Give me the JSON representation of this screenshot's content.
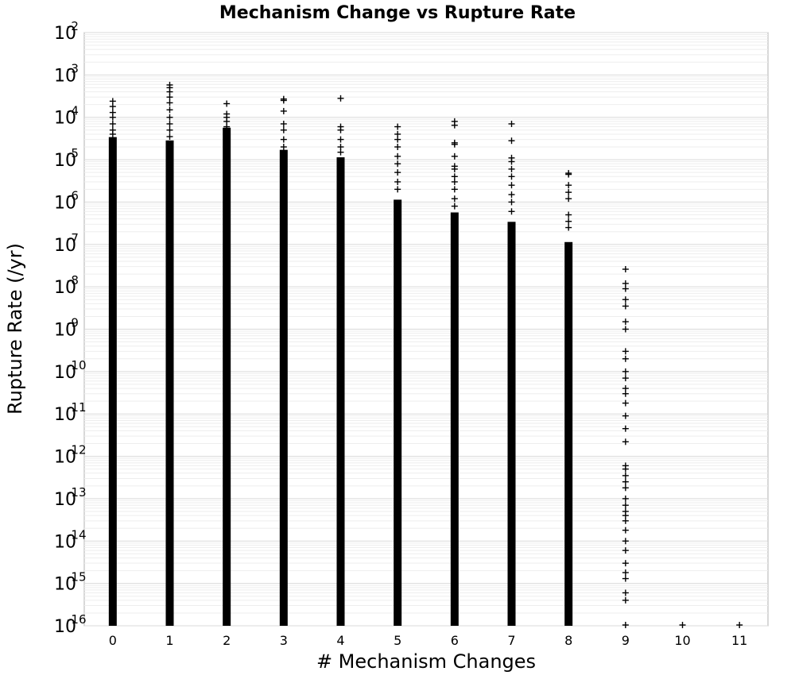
{
  "chart_data": {
    "type": "scatter",
    "title": "Mechanism Change vs Rupture Rate",
    "xlabel": "# Mechanism Changes",
    "ylabel": "Rupture Rate (/yr)",
    "x_ticks": [
      "0",
      "1",
      "2",
      "3",
      "4",
      "5",
      "6",
      "7",
      "8",
      "9",
      "10",
      "11"
    ],
    "xlim": [
      -0.5,
      11.5
    ],
    "y_scale": "log",
    "ylim": [
      1e-16,
      0.01
    ],
    "y_ticks": [
      {
        "base": "10",
        "exp": "-2"
      },
      {
        "base": "10",
        "exp": "-3"
      },
      {
        "base": "10",
        "exp": "-4"
      },
      {
        "base": "10",
        "exp": "-5"
      },
      {
        "base": "10",
        "exp": "-6"
      },
      {
        "base": "10",
        "exp": "-7"
      },
      {
        "base": "10",
        "exp": "-8"
      },
      {
        "base": "10",
        "exp": "-9"
      },
      {
        "base": "10",
        "exp": "-10"
      },
      {
        "base": "10",
        "exp": "-11"
      },
      {
        "base": "10",
        "exp": "-12"
      },
      {
        "base": "10",
        "exp": "-13"
      },
      {
        "base": "10",
        "exp": "-14"
      },
      {
        "base": "10",
        "exp": "-15"
      },
      {
        "base": "10",
        "exp": "-16"
      }
    ],
    "grid": true,
    "marker": "+",
    "marker_color": "#000000",
    "dense_ranges": [
      {
        "x": 0,
        "y_min": 1e-16,
        "y_max": 3e-05
      },
      {
        "x": 1,
        "y_min": 1e-16,
        "y_max": 2.5e-05
      },
      {
        "x": 2,
        "y_min": 1e-16,
        "y_max": 5e-05
      },
      {
        "x": 3,
        "y_min": 1e-16,
        "y_max": 1.5e-05
      },
      {
        "x": 4,
        "y_min": 1e-16,
        "y_max": 1e-05
      },
      {
        "x": 5,
        "y_min": 1e-16,
        "y_max": 1e-06
      },
      {
        "x": 6,
        "y_min": 1e-16,
        "y_max": 5e-07
      },
      {
        "x": 7,
        "y_min": 1e-16,
        "y_max": 3e-07
      },
      {
        "x": 8,
        "y_min": 1e-16,
        "y_max": 1e-07
      }
    ],
    "points": [
      {
        "x": 0,
        "y": 0.00024
      },
      {
        "x": 0,
        "y": 0.00018
      },
      {
        "x": 0,
        "y": 0.00013
      },
      {
        "x": 0,
        "y": 0.0001
      },
      {
        "x": 0,
        "y": 7e-05
      },
      {
        "x": 0,
        "y": 5e-05
      },
      {
        "x": 0,
        "y": 4e-05
      },
      {
        "x": 1,
        "y": 0.00058
      },
      {
        "x": 1,
        "y": 0.0005
      },
      {
        "x": 1,
        "y": 0.0004
      },
      {
        "x": 1,
        "y": 0.0003
      },
      {
        "x": 1,
        "y": 0.00022
      },
      {
        "x": 1,
        "y": 0.00015
      },
      {
        "x": 1,
        "y": 0.0001
      },
      {
        "x": 1,
        "y": 7e-05
      },
      {
        "x": 1,
        "y": 5e-05
      },
      {
        "x": 1,
        "y": 3.5e-05
      },
      {
        "x": 2,
        "y": 0.00021
      },
      {
        "x": 2,
        "y": 0.00012
      },
      {
        "x": 2,
        "y": 0.0001
      },
      {
        "x": 2,
        "y": 8e-05
      },
      {
        "x": 2,
        "y": 6e-05
      },
      {
        "x": 3,
        "y": 0.00027
      },
      {
        "x": 3,
        "y": 0.00025
      },
      {
        "x": 3,
        "y": 0.00014
      },
      {
        "x": 3,
        "y": 7e-05
      },
      {
        "x": 3,
        "y": 5e-05
      },
      {
        "x": 3,
        "y": 3e-05
      },
      {
        "x": 3,
        "y": 2e-05
      },
      {
        "x": 4,
        "y": 0.00028
      },
      {
        "x": 4,
        "y": 6e-05
      },
      {
        "x": 4,
        "y": 5e-05
      },
      {
        "x": 4,
        "y": 3e-05
      },
      {
        "x": 4,
        "y": 2e-05
      },
      {
        "x": 4,
        "y": 1.5e-05
      },
      {
        "x": 5,
        "y": 6e-05
      },
      {
        "x": 5,
        "y": 4e-05
      },
      {
        "x": 5,
        "y": 3e-05
      },
      {
        "x": 5,
        "y": 2e-05
      },
      {
        "x": 5,
        "y": 1.2e-05
      },
      {
        "x": 5,
        "y": 8e-06
      },
      {
        "x": 5,
        "y": 5e-06
      },
      {
        "x": 5,
        "y": 3e-06
      },
      {
        "x": 5,
        "y": 2e-06
      },
      {
        "x": 6,
        "y": 8e-05
      },
      {
        "x": 6,
        "y": 6.5e-05
      },
      {
        "x": 6,
        "y": 2.5e-05
      },
      {
        "x": 6,
        "y": 2.3e-05
      },
      {
        "x": 6,
        "y": 1.2e-05
      },
      {
        "x": 6,
        "y": 7e-06
      },
      {
        "x": 6,
        "y": 6e-06
      },
      {
        "x": 6,
        "y": 4e-06
      },
      {
        "x": 6,
        "y": 3e-06
      },
      {
        "x": 6,
        "y": 2e-06
      },
      {
        "x": 6,
        "y": 1.2e-06
      },
      {
        "x": 6,
        "y": 8e-07
      },
      {
        "x": 7,
        "y": 7e-05
      },
      {
        "x": 7,
        "y": 2.8e-05
      },
      {
        "x": 7,
        "y": 1.1e-05
      },
      {
        "x": 7,
        "y": 9e-06
      },
      {
        "x": 7,
        "y": 6e-06
      },
      {
        "x": 7,
        "y": 4e-06
      },
      {
        "x": 7,
        "y": 2.5e-06
      },
      {
        "x": 7,
        "y": 1.5e-06
      },
      {
        "x": 7,
        "y": 1e-06
      },
      {
        "x": 7,
        "y": 6e-07
      },
      {
        "x": 8,
        "y": 4.8e-06
      },
      {
        "x": 8,
        "y": 4.5e-06
      },
      {
        "x": 8,
        "y": 2.5e-06
      },
      {
        "x": 8,
        "y": 1.7e-06
      },
      {
        "x": 8,
        "y": 1.2e-06
      },
      {
        "x": 8,
        "y": 5e-07
      },
      {
        "x": 8,
        "y": 3.5e-07
      },
      {
        "x": 8,
        "y": 2.5e-07
      },
      {
        "x": 9,
        "y": 2.6e-08
      },
      {
        "x": 9,
        "y": 1.2e-08
      },
      {
        "x": 9,
        "y": 9e-09
      },
      {
        "x": 9,
        "y": 5e-09
      },
      {
        "x": 9,
        "y": 3.5e-09
      },
      {
        "x": 9,
        "y": 1.5e-09
      },
      {
        "x": 9,
        "y": 1e-09
      },
      {
        "x": 9,
        "y": 3e-10
      },
      {
        "x": 9,
        "y": 2e-10
      },
      {
        "x": 9,
        "y": 1e-10
      },
      {
        "x": 9,
        "y": 7e-11
      },
      {
        "x": 9,
        "y": 4e-11
      },
      {
        "x": 9,
        "y": 3e-11
      },
      {
        "x": 9,
        "y": 1.8e-11
      },
      {
        "x": 9,
        "y": 9e-12
      },
      {
        "x": 9,
        "y": 4.5e-12
      },
      {
        "x": 9,
        "y": 2.2e-12
      },
      {
        "x": 9,
        "y": 6e-13
      },
      {
        "x": 9,
        "y": 5e-13
      },
      {
        "x": 9,
        "y": 3.5e-13
      },
      {
        "x": 9,
        "y": 2.5e-13
      },
      {
        "x": 9,
        "y": 1.8e-13
      },
      {
        "x": 9,
        "y": 1e-13
      },
      {
        "x": 9,
        "y": 7e-14
      },
      {
        "x": 9,
        "y": 5e-14
      },
      {
        "x": 9,
        "y": 4e-14
      },
      {
        "x": 9,
        "y": 3e-14
      },
      {
        "x": 9,
        "y": 1.8e-14
      },
      {
        "x": 9,
        "y": 1e-14
      },
      {
        "x": 9,
        "y": 6e-15
      },
      {
        "x": 9,
        "y": 3e-15
      },
      {
        "x": 9,
        "y": 1.8e-15
      },
      {
        "x": 9,
        "y": 1.3e-15
      },
      {
        "x": 9,
        "y": 6e-16
      },
      {
        "x": 9,
        "y": 4e-16
      },
      {
        "x": 9,
        "y": 1e-16
      },
      {
        "x": 10,
        "y": 1e-16
      },
      {
        "x": 11,
        "y": 1e-16
      }
    ]
  }
}
